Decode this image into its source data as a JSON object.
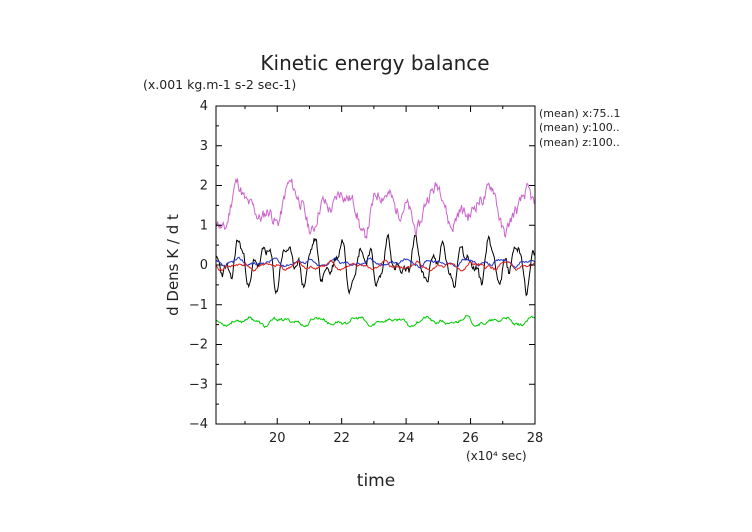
{
  "chart_data": {
    "type": "line",
    "title": "Kinetic energy balance",
    "subtitle": "(x.001 kg.m-1 s-2 sec-1)",
    "xlabel": "time",
    "ylabel": "d Dens K / d t",
    "x_unit_label": "(x10⁴ sec)",
    "annotations": [
      "(mean) x:75..1",
      "(mean) y:100..",
      "(mean) z:100.."
    ],
    "xlim": [
      18.1,
      28
    ],
    "ylim": [
      -4,
      4
    ],
    "xticks": [
      20,
      22,
      24,
      26,
      28
    ],
    "yticks": [
      -4,
      -3,
      -2,
      -1,
      0,
      1,
      2,
      3,
      4
    ],
    "grid": false,
    "series": [
      {
        "color": "#cc66cc",
        "base": 1.45,
        "amp": 0.38,
        "freq": 1.35,
        "noise": 0.28,
        "seed": 11
      },
      {
        "color": "#000000",
        "base": 0.05,
        "amp": 0.38,
        "freq": 2.6,
        "noise": 0.18,
        "seed": 23
      },
      {
        "color": "#2233cc",
        "base": 0.06,
        "amp": 0.06,
        "freq": 2.0,
        "noise": 0.05,
        "seed": 37
      },
      {
        "color": "#dd2222",
        "base": -0.03,
        "amp": 0.06,
        "freq": 2.2,
        "noise": 0.06,
        "seed": 41
      },
      {
        "color": "#00cc00",
        "base": -1.42,
        "amp": 0.07,
        "freq": 1.8,
        "noise": 0.06,
        "seed": 53
      }
    ]
  }
}
